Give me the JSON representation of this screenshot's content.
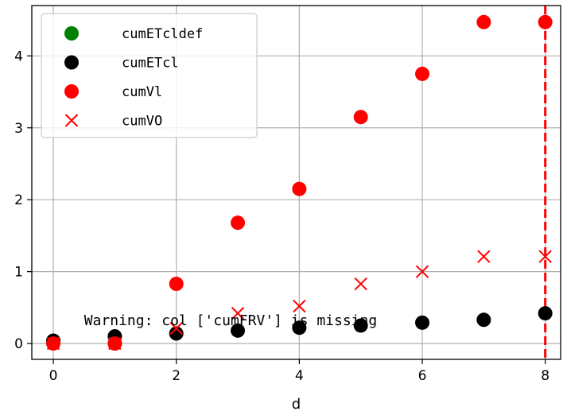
{
  "chart_data": {
    "type": "scatter",
    "xlabel": "d",
    "ylabel": "",
    "xlim": [
      -0.35,
      8.25
    ],
    "ylim": [
      -0.22,
      4.7
    ],
    "xticks": [
      0,
      2,
      4,
      6,
      8
    ],
    "yticks": [
      0,
      1,
      2,
      3,
      4
    ],
    "grid": true,
    "legend_position": "top-left",
    "series": [
      {
        "name": "cumETcldef",
        "marker": "circle",
        "color": "#008000",
        "x": [
          0,
          1
        ],
        "y": [
          0.03,
          0.0
        ]
      },
      {
        "name": "cumETcl",
        "marker": "circle",
        "color": "#000000",
        "x": [
          0,
          1,
          2,
          3,
          4,
          5,
          6,
          7,
          8
        ],
        "y": [
          0.04,
          0.1,
          0.14,
          0.18,
          0.22,
          0.25,
          0.29,
          0.33,
          0.42
        ]
      },
      {
        "name": "cumVl",
        "marker": "circle",
        "color": "#ff0000",
        "x": [
          0,
          1,
          2,
          3,
          4,
          5,
          6,
          7,
          8
        ],
        "y": [
          0.0,
          0.0,
          0.83,
          1.68,
          2.15,
          3.15,
          3.75,
          4.47,
          4.47
        ]
      },
      {
        "name": "cumVO",
        "marker": "x",
        "color": "#ff0000",
        "x": [
          0,
          1,
          2,
          3,
          4,
          5,
          6,
          7,
          8
        ],
        "y": [
          0.0,
          0.0,
          0.21,
          0.42,
          0.52,
          0.83,
          1.0,
          1.21,
          1.21
        ]
      }
    ],
    "vline": {
      "x": 8,
      "color": "#ff0000",
      "style": "dashed"
    },
    "annotations": [
      {
        "text": "Warning: col ['cumFRV'] is missing",
        "x": 0.5,
        "y": 0.32
      }
    ]
  }
}
